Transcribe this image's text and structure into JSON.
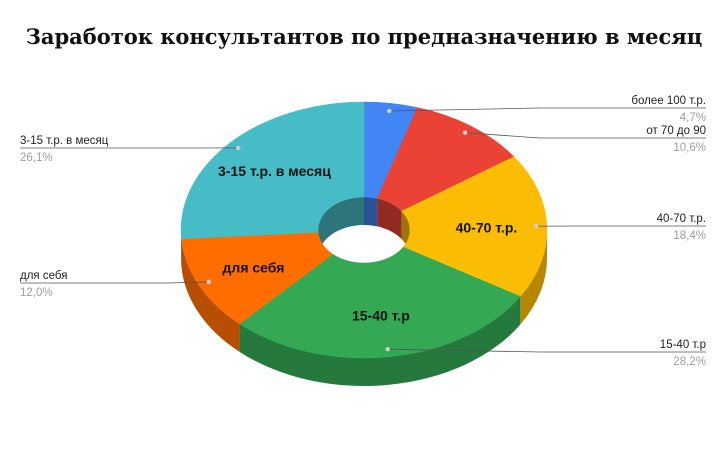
{
  "chart_data": {
    "type": "pie",
    "title": "Заработок консультантов по предназначению в месяц",
    "slices": [
      {
        "name": "более 100 т.р.",
        "value": 4.7,
        "pct_label": "4,7%",
        "color": "#4285f4",
        "inside_label": ""
      },
      {
        "name": "от 70 до 90",
        "value": 10.6,
        "pct_label": "10,6%",
        "color": "#ea4335",
        "inside_label": ""
      },
      {
        "name": "40-70 т.р.",
        "value": 18.4,
        "pct_label": "18,4%",
        "color": "#fbbc04",
        "inside_label": "40-70 т.р."
      },
      {
        "name": "15-40 т.р",
        "value": 28.2,
        "pct_label": "28,2%",
        "color": "#34a853",
        "inside_label": "15-40 т.р"
      },
      {
        "name": "для себя",
        "value": 12.0,
        "pct_label": "12,0%",
        "color": "#ff6d01",
        "inside_label": "для себя"
      },
      {
        "name": "3-15 т.р. в месяц",
        "value": 26.1,
        "pct_label": "26,1%",
        "color": "#46bdc6",
        "inside_label": "3-15 т.р. в месяц"
      }
    ],
    "style": "3d-donut"
  }
}
